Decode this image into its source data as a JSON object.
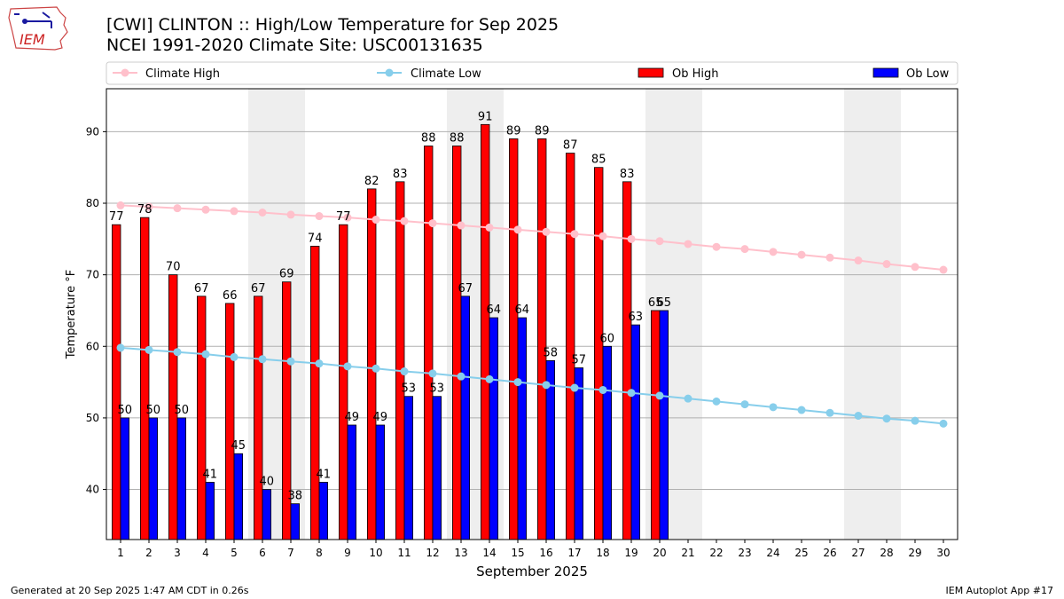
{
  "title_line1": "[CWI] CLINTON :: High/Low Temperature for Sep 2025",
  "title_line2": "NCEI 1991-2020 Climate Site: USC00131635",
  "logo_text": "IEM",
  "footer_left": "Generated at 20 Sep 2025 1:47 AM CDT in 0.26s",
  "footer_right": "IEM Autoplot App #17",
  "colors": {
    "ob_high": "#ff0000",
    "ob_low": "#0000ff",
    "climate_high": "#ffc0cb",
    "climate_low": "#87ceeb",
    "weekend_band": "#eeeeee",
    "grid": "#b0b0b0"
  },
  "chart_data": {
    "type": "bar",
    "xlabel": "September 2025",
    "ylabel": "Temperature °F",
    "ylim": [
      33,
      96
    ],
    "yticks": [
      40,
      50,
      60,
      70,
      80,
      90
    ],
    "days": [
      1,
      2,
      3,
      4,
      5,
      6,
      7,
      8,
      9,
      10,
      11,
      12,
      13,
      14,
      15,
      16,
      17,
      18,
      19,
      20,
      21,
      22,
      23,
      24,
      25,
      26,
      27,
      28,
      29,
      30
    ],
    "weekend_bands": [
      [
        6,
        7
      ],
      [
        13,
        14
      ],
      [
        20,
        21
      ],
      [
        27,
        28
      ]
    ],
    "grid": "horizontal",
    "legend_position": "top",
    "legend": [
      "Climate High",
      "Climate Low",
      "Ob High",
      "Ob Low"
    ],
    "series": [
      {
        "name": "Ob High",
        "type": "bar",
        "values": [
          77,
          78,
          70,
          67,
          66,
          67,
          69,
          74,
          77,
          82,
          83,
          88,
          88,
          91,
          89,
          89,
          87,
          85,
          83,
          65
        ]
      },
      {
        "name": "Ob Low",
        "type": "bar",
        "values": [
          50,
          50,
          50,
          41,
          45,
          40,
          38,
          41,
          49,
          49,
          53,
          53,
          67,
          64,
          64,
          58,
          57,
          60,
          63,
          65
        ]
      },
      {
        "name": "Climate High",
        "type": "line",
        "values": [
          79.7,
          79.5,
          79.3,
          79.1,
          78.9,
          78.7,
          78.4,
          78.2,
          78.0,
          77.7,
          77.5,
          77.2,
          76.9,
          76.6,
          76.3,
          76.0,
          75.7,
          75.4,
          75.0,
          74.7,
          74.3,
          73.9,
          73.6,
          73.2,
          72.8,
          72.4,
          72.0,
          71.5,
          71.1,
          70.7
        ]
      },
      {
        "name": "Climate Low",
        "type": "line",
        "values": [
          59.8,
          59.5,
          59.2,
          58.9,
          58.5,
          58.2,
          57.9,
          57.6,
          57.2,
          56.9,
          56.5,
          56.2,
          55.8,
          55.4,
          55.0,
          54.6,
          54.2,
          53.9,
          53.5,
          53.1,
          52.7,
          52.3,
          51.9,
          51.5,
          51.1,
          50.7,
          50.3,
          49.9,
          49.6,
          49.2
        ]
      }
    ]
  }
}
